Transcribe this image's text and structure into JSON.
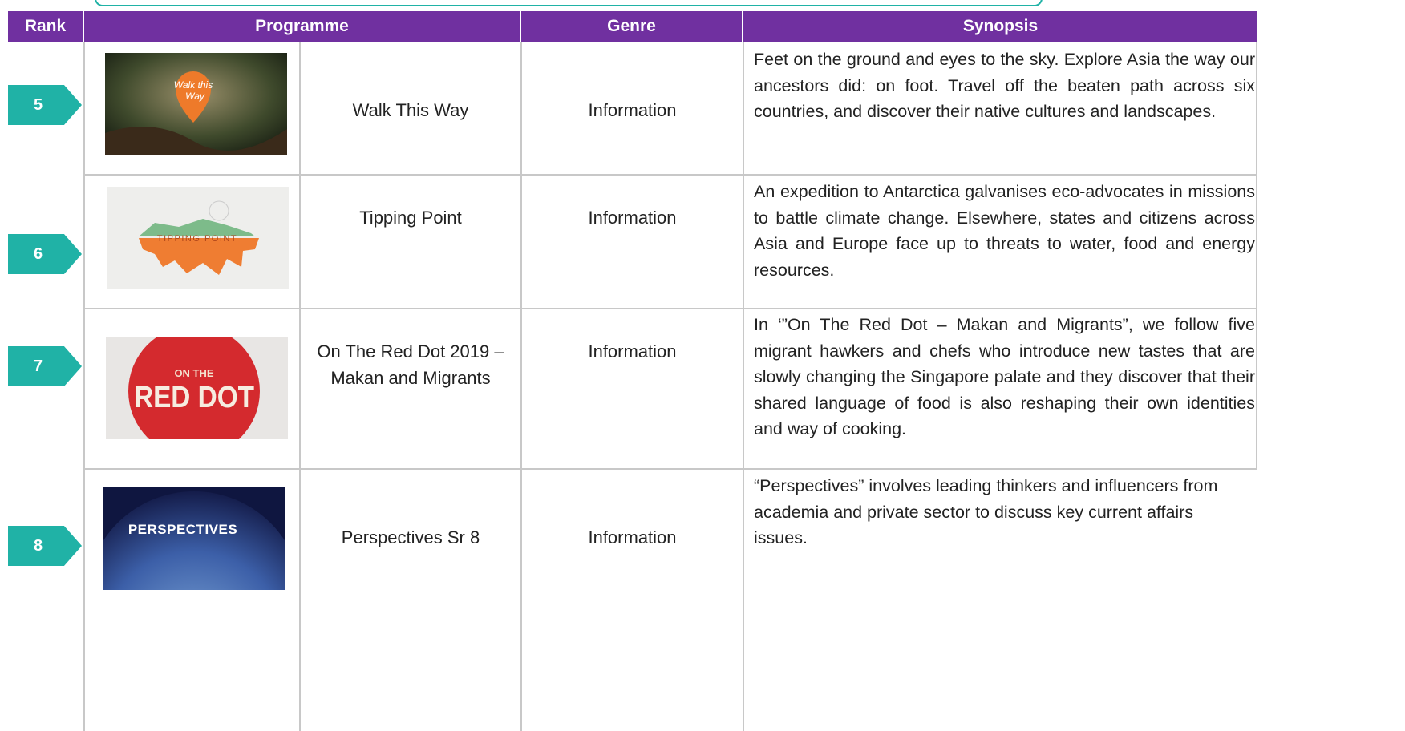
{
  "table": {
    "header": [
      "Rank",
      "Programme",
      "Genre",
      "Synopsis"
    ],
    "rows": [
      {
        "rank": 5,
        "thumbnail_text": [
          "Walk this",
          "Way"
        ],
        "programme": "Walk This Way",
        "genre": "Information",
        "synopsis": "Feet on the ground and eyes to the sky. Explore Asia the way our ancestors did: on foot. Travel off the beaten path across six countries, and discover their native cultures and landscapes."
      },
      {
        "rank": 6,
        "thumbnail_text": [
          "TIPPING POINT"
        ],
        "programme": "Tipping Point",
        "genre": "Information",
        "synopsis": "An expedition to Antarctica galvanises eco-advocates in missions to battle climate change. Elsewhere, states and citizens across Asia and Europe face up to threats to water, food and energy resources."
      },
      {
        "rank": 7,
        "thumbnail_text": [
          "ON THE",
          "RED DOT"
        ],
        "programme": "On The Red Dot 2019 – Makan and Migrants",
        "genre": "Information",
        "synopsis": "In ‘”On The Red Dot – Makan and Migrants”, we follow five migrant hawkers and chefs who introduce new tastes that are slowly changing the Singapore palate and they discover that their shared language of food is also reshaping their own identities and way of cooking."
      },
      {
        "rank": 8,
        "thumbnail_text": [
          "PERSPECTIVES"
        ],
        "programme": "Perspectives Sr 8",
        "genre": "Information",
        "synopsis": "“Perspectives” involves leading thinkers and influencers from academia and private sector to discuss key current affairs issues."
      }
    ]
  }
}
